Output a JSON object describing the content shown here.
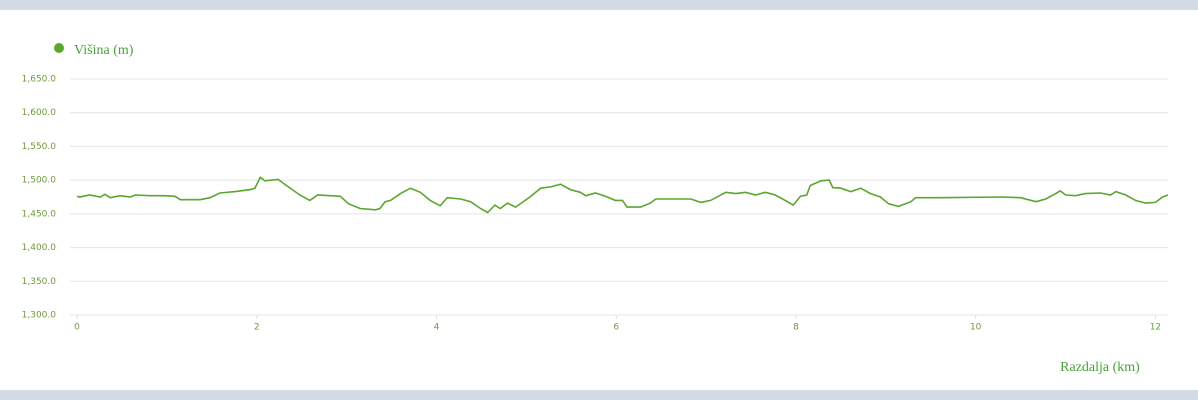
{
  "chart_data": {
    "type": "line",
    "x_label": "Razdalja (km)",
    "x": [
      0,
      0.03,
      0.14,
      0.26,
      0.31,
      0.37,
      0.48,
      0.59,
      0.65,
      0.81,
      0.98,
      1.09,
      1.15,
      1.37,
      1.48,
      1.59,
      1.76,
      1.93,
      1.98,
      2.04,
      2.09,
      2.24,
      2.32,
      2.48,
      2.59,
      2.68,
      2.82,
      2.93,
      3.02,
      3.15,
      3.32,
      3.37,
      3.43,
      3.49,
      3.6,
      3.71,
      3.82,
      3.93,
      4.04,
      4.12,
      4.27,
      4.38,
      4.49,
      4.57,
      4.65,
      4.71,
      4.79,
      4.88,
      5.04,
      5.16,
      5.27,
      5.38,
      5.49,
      5.6,
      5.66,
      5.77,
      5.88,
      5.99,
      6.07,
      6.12,
      6.27,
      6.38,
      6.44,
      6.6,
      6.83,
      6.94,
      7.05,
      7.22,
      7.33,
      7.44,
      7.55,
      7.66,
      7.77,
      7.88,
      7.97,
      8.05,
      8.12,
      8.16,
      8.28,
      8.37,
      8.41,
      8.5,
      8.61,
      8.72,
      8.83,
      8.94,
      9.03,
      9.14,
      9.28,
      9.33,
      9.61,
      10.28,
      10.5,
      10.67,
      10.78,
      10.89,
      10.94,
      11.0,
      11.11,
      11.22,
      11.39,
      11.5,
      11.56,
      11.67,
      11.78,
      11.89,
      12.0,
      12.08,
      12.14
    ],
    "series": [
      {
        "name": "Višina (m)",
        "color": "#5aa62e",
        "values": [
          1476,
          1475,
          1478,
          1475,
          1479,
          1474,
          1477,
          1475,
          1478,
          1477,
          1477,
          1476,
          1471,
          1471,
          1474,
          1481,
          1483,
          1486,
          1488,
          1504,
          1499,
          1501,
          1493,
          1478,
          1470,
          1478,
          1477,
          1476,
          1465,
          1458,
          1456,
          1458,
          1468,
          1470,
          1480,
          1488,
          1482,
          1470,
          1462,
          1474,
          1472,
          1468,
          1458,
          1452,
          1463,
          1458,
          1466,
          1460,
          1475,
          1488,
          1490,
          1494,
          1486,
          1482,
          1477,
          1481,
          1476,
          1470,
          1470,
          1460,
          1460,
          1466,
          1472,
          1472,
          1472,
          1467,
          1470,
          1482,
          1480,
          1482,
          1478,
          1482,
          1478,
          1470,
          1463,
          1476,
          1478,
          1492,
          1499,
          1500,
          1489,
          1488,
          1483,
          1488,
          1480,
          1475,
          1465,
          1461,
          1468,
          1474,
          1474,
          1475,
          1474,
          1468,
          1472,
          1480,
          1484,
          1478,
          1477,
          1480,
          1481,
          1478,
          1483,
          1478,
          1470,
          1466,
          1467,
          1475,
          1478
        ]
      }
    ],
    "xlim": [
      0,
      12.14
    ],
    "xticks": [
      0,
      2,
      4,
      6,
      8,
      10,
      12
    ],
    "ylim": [
      1300,
      1650
    ],
    "yticks": [
      {
        "value": 1300,
        "label": "1,300.0"
      },
      {
        "value": 1350,
        "label": "1,350.0"
      },
      {
        "value": 1400,
        "label": "1,400.0"
      },
      {
        "value": 1450,
        "label": "1,450.0"
      },
      {
        "value": 1500,
        "label": "1,500.0"
      },
      {
        "value": 1550,
        "label": "1,550.0"
      },
      {
        "value": 1600,
        "label": "1,600.0"
      },
      {
        "value": 1650,
        "label": "1,650.0"
      }
    ],
    "grid": true
  }
}
